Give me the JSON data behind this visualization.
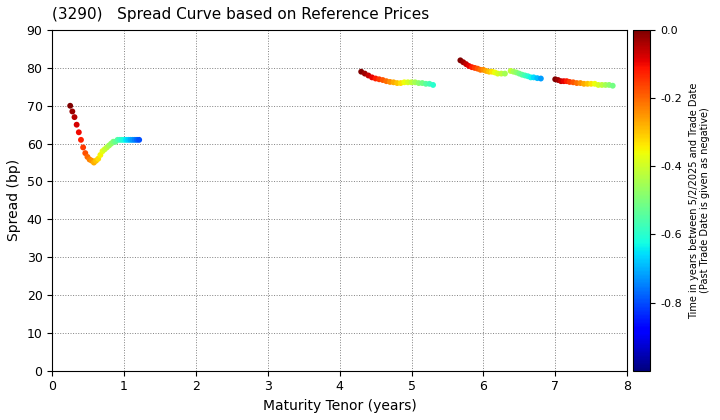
{
  "title": "(3290)   Spread Curve based on Reference Prices",
  "xlabel": "Maturity Tenor (years)",
  "ylabel": "Spread (bp)",
  "colorbar_label": "Time in years between 5/2/2025 and Trade Date\n(Past Trade Date is given as negative)",
  "xlim": [
    0,
    8
  ],
  "ylim": [
    0,
    90
  ],
  "xticks": [
    0,
    1,
    2,
    3,
    4,
    5,
    6,
    7,
    8
  ],
  "yticks": [
    0,
    10,
    20,
    30,
    40,
    50,
    60,
    70,
    80,
    90
  ],
  "cmap": "jet",
  "clim": [
    -1.0,
    0.0
  ],
  "cticks": [
    0.0,
    -0.2,
    -0.4,
    -0.6,
    -0.8
  ],
  "background_color": "#ffffff",
  "point_size": 18,
  "clusters": [
    {
      "x": [
        0.25,
        0.28,
        0.31,
        0.34,
        0.37,
        0.4,
        0.43,
        0.46,
        0.49,
        0.52,
        0.55,
        0.58,
        0.61,
        0.64,
        0.67,
        0.7,
        0.73,
        0.76,
        0.79,
        0.82,
        0.85,
        0.88,
        0.91,
        0.94,
        0.97,
        1.0,
        1.03,
        1.06,
        1.09,
        1.12,
        1.15,
        1.18,
        1.21
      ],
      "y": [
        70,
        68.5,
        67,
        65,
        63,
        61,
        59,
        57.5,
        56.5,
        55.8,
        55.5,
        55,
        55.5,
        56,
        57,
        58,
        58.5,
        59,
        59.5,
        60,
        60.5,
        60.5,
        61,
        61,
        61,
        61,
        61,
        61,
        61,
        61,
        61,
        61,
        61
      ],
      "c": [
        0.0,
        -0.025,
        -0.05,
        -0.075,
        -0.1,
        -0.125,
        -0.15,
        -0.175,
        -0.2,
        -0.225,
        -0.25,
        -0.275,
        -0.3,
        -0.325,
        -0.35,
        -0.375,
        -0.4,
        -0.425,
        -0.45,
        -0.475,
        -0.5,
        -0.525,
        -0.55,
        -0.575,
        -0.6,
        -0.625,
        -0.65,
        -0.675,
        -0.7,
        -0.725,
        -0.75,
        -0.775,
        -0.8
      ]
    },
    {
      "x": [
        4.3,
        4.35,
        4.4,
        4.45,
        4.5,
        4.55,
        4.6,
        4.65,
        4.7,
        4.75,
        4.8,
        4.85,
        4.9,
        4.95,
        5.0,
        5.05,
        5.1,
        5.15,
        5.2,
        5.25,
        5.3
      ],
      "y": [
        79,
        78.5,
        78,
        77.5,
        77.2,
        77,
        76.8,
        76.5,
        76.3,
        76.2,
        76,
        76,
        76.2,
        76.2,
        76.2,
        76.2,
        76,
        76,
        75.8,
        75.8,
        75.5
      ],
      "c": [
        0.0,
        -0.03,
        -0.06,
        -0.09,
        -0.12,
        -0.15,
        -0.18,
        -0.21,
        -0.24,
        -0.27,
        -0.3,
        -0.33,
        -0.36,
        -0.39,
        -0.42,
        -0.45,
        -0.48,
        -0.51,
        -0.54,
        -0.57,
        -0.6
      ]
    },
    {
      "x": [
        5.68,
        5.72,
        5.76,
        5.8,
        5.84,
        5.88,
        5.92,
        5.96,
        6.0,
        6.04,
        6.08,
        6.12,
        6.16,
        6.2,
        6.25,
        6.3
      ],
      "y": [
        82,
        81.5,
        81,
        80.5,
        80.2,
        80,
        79.8,
        79.5,
        79.5,
        79.2,
        79,
        79,
        78.8,
        78.5,
        78.5,
        78.5
      ],
      "c": [
        0.0,
        -0.03,
        -0.06,
        -0.09,
        -0.12,
        -0.15,
        -0.18,
        -0.21,
        -0.24,
        -0.27,
        -0.3,
        -0.33,
        -0.36,
        -0.39,
        -0.42,
        -0.45
      ]
    },
    {
      "x": [
        6.38,
        6.42,
        6.46,
        6.5,
        6.54,
        6.58,
        6.62,
        6.66,
        6.7,
        6.75,
        6.8
      ],
      "y": [
        79.2,
        79,
        78.8,
        78.5,
        78.2,
        78.0,
        77.8,
        77.5,
        77.5,
        77.3,
        77.2
      ],
      "c": [
        -0.42,
        -0.45,
        -0.48,
        -0.51,
        -0.54,
        -0.57,
        -0.6,
        -0.63,
        -0.66,
        -0.69,
        -0.72
      ]
    },
    {
      "x": [
        7.0,
        7.04,
        7.08,
        7.12,
        7.16,
        7.2,
        7.25,
        7.3,
        7.35,
        7.4,
        7.45,
        7.5,
        7.55,
        7.6,
        7.65,
        7.7,
        7.75,
        7.8
      ],
      "y": [
        77,
        76.8,
        76.5,
        76.5,
        76.5,
        76.3,
        76.2,
        76.0,
        76.0,
        75.8,
        75.8,
        75.8,
        75.8,
        75.5,
        75.5,
        75.5,
        75.5,
        75.3
      ],
      "c": [
        0.0,
        -0.03,
        -0.06,
        -0.09,
        -0.12,
        -0.15,
        -0.18,
        -0.21,
        -0.24,
        -0.27,
        -0.3,
        -0.33,
        -0.36,
        -0.39,
        -0.42,
        -0.45,
        -0.48,
        -0.51
      ]
    }
  ]
}
